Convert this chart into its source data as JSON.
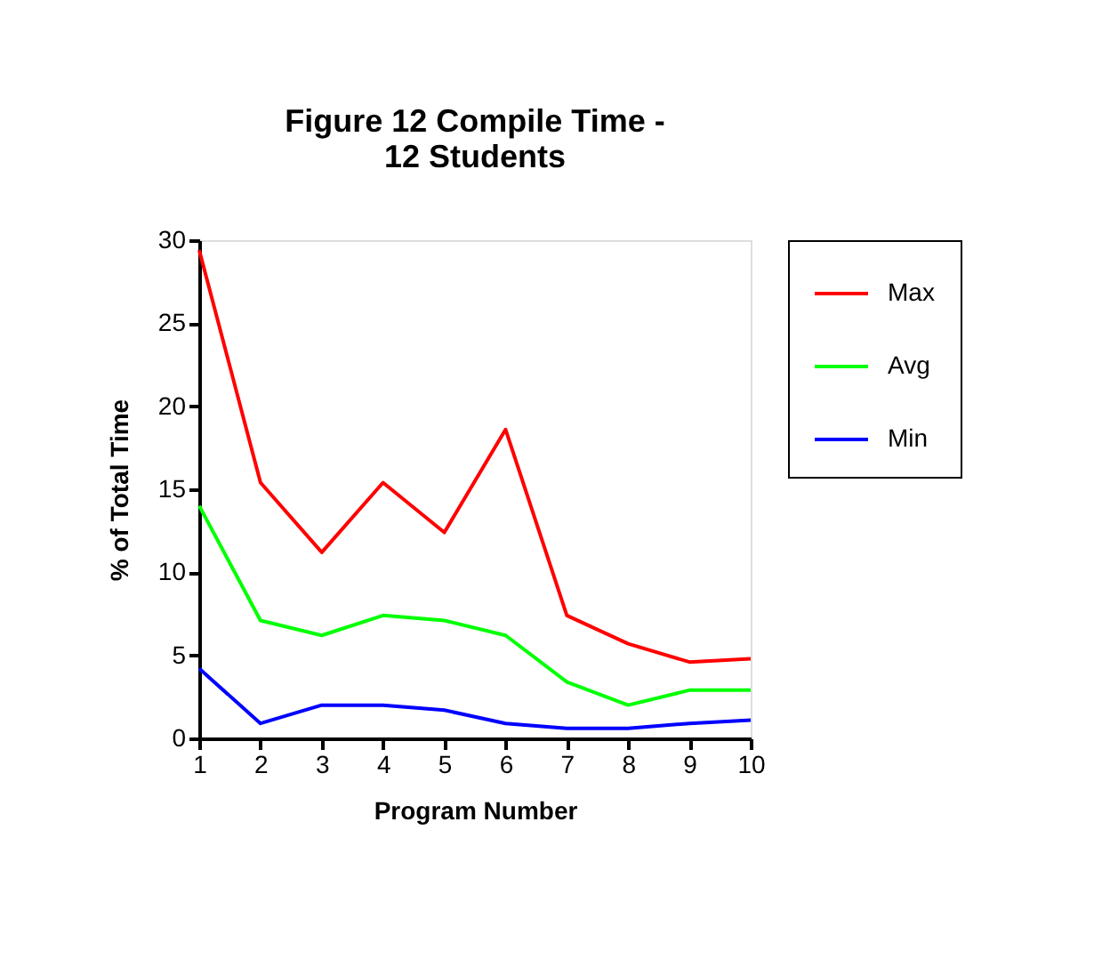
{
  "chart_data": {
    "type": "line",
    "title": "Figure 12   Compile Time - 12 Students",
    "xlabel": "Program Number",
    "ylabel": "% of Total Time",
    "x": [
      1,
      2,
      3,
      4,
      5,
      6,
      7,
      8,
      9,
      10
    ],
    "xlim": [
      1,
      10
    ],
    "xticks": [
      1,
      2,
      3,
      4,
      5,
      6,
      7,
      8,
      9,
      10
    ],
    "ylim": [
      0,
      30
    ],
    "yticks": [
      0,
      5,
      10,
      15,
      20,
      25,
      30
    ],
    "series": [
      {
        "name": "Max",
        "color": "#ff0000",
        "values": [
          29.4,
          15.4,
          11.2,
          15.4,
          12.4,
          18.6,
          7.4,
          5.7,
          4.6,
          4.8
        ]
      },
      {
        "name": "Avg",
        "color": "#00ff00",
        "values": [
          14.0,
          7.1,
          6.2,
          7.4,
          7.1,
          6.2,
          3.4,
          2.0,
          2.9,
          2.9
        ]
      },
      {
        "name": "Min",
        "color": "#0000ff",
        "values": [
          4.2,
          0.9,
          2.0,
          2.0,
          1.7,
          0.9,
          0.6,
          0.6,
          0.9,
          1.1
        ]
      }
    ],
    "legend": "right",
    "grid": false,
    "marker": "none",
    "line_style": "solid"
  }
}
